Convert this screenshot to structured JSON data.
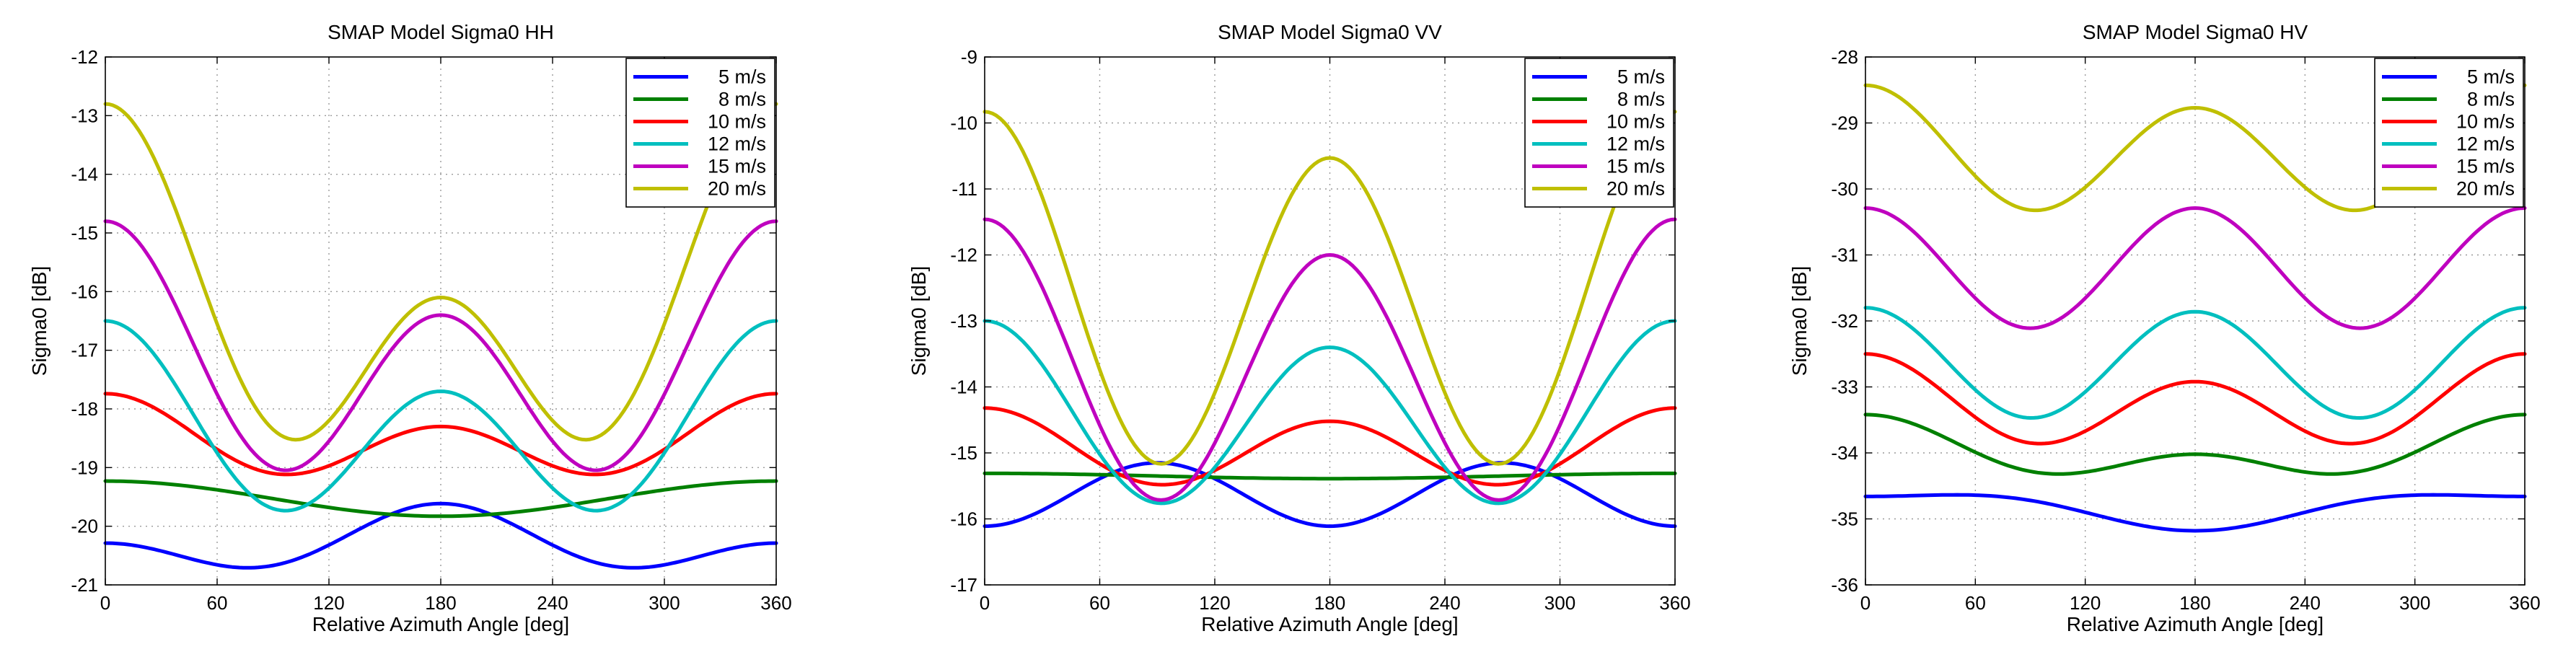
{
  "colors": {
    "5 m/s": "#0000ff",
    "8 m/s": "#008000",
    "10 m/s": "#ff0000",
    "12 m/s": "#00bfbf",
    "15 m/s": "#bf00bf",
    "20 m/s": "#bfbf00"
  },
  "chart_data": [
    {
      "type": "line",
      "title": "SMAP Model Sigma0 HH",
      "xlabel": "Relative Azimuth Angle [deg]",
      "ylabel": "Sigma0 [dB]",
      "xlim": [
        0,
        360
      ],
      "ylim": [
        -21,
        -12
      ],
      "xticks": [
        0,
        60,
        120,
        180,
        240,
        300,
        360
      ],
      "yticks": [
        -21,
        -20,
        -19,
        -18,
        -17,
        -16,
        -15,
        -14,
        -13,
        -12
      ],
      "grid": true,
      "legend_position": "top-right",
      "series": [
        {
          "name": "5 m/s",
          "a0": -20.31,
          "a1": -0.337,
          "a2": 0.359
        },
        {
          "name": "8 m/s",
          "a0": -19.53,
          "a1": 0.3,
          "a2": 0.0
        },
        {
          "name": "10 m/s",
          "a0": -18.56,
          "a1": 0.28,
          "a2": 0.54
        },
        {
          "name": "12 m/s",
          "a0": -18.4,
          "a1": 0.6,
          "a2": 1.3
        },
        {
          "name": "15 m/s",
          "a0": -17.3,
          "a1": 0.8,
          "a2": 1.7
        },
        {
          "name": "20 m/s",
          "a0": -16.4,
          "a1": 1.65,
          "a2": 1.95
        }
      ]
    },
    {
      "type": "line",
      "title": "SMAP Model Sigma0 VV",
      "xlabel": "Relative Azimuth Angle [deg]",
      "ylabel": "Sigma0 [dB]",
      "xlim": [
        0,
        360
      ],
      "ylim": [
        -17,
        -9
      ],
      "xticks": [
        0,
        60,
        120,
        180,
        240,
        300,
        360
      ],
      "yticks": [
        -17,
        -16,
        -15,
        -14,
        -13,
        -12,
        -11,
        -10,
        -9
      ],
      "grid": true,
      "legend_position": "top-right",
      "series": [
        {
          "name": "5 m/s",
          "a0": -15.63,
          "a1": 0.0,
          "a2": -0.48
        },
        {
          "name": "8 m/s",
          "a0": -15.35,
          "a1": 0.04,
          "a2": 0.0
        },
        {
          "name": "10 m/s",
          "a0": -14.95,
          "a1": 0.1,
          "a2": 0.53
        },
        {
          "name": "12 m/s",
          "a0": -14.48,
          "a1": 0.2,
          "a2": 1.28
        },
        {
          "name": "15 m/s",
          "a0": -13.72,
          "a1": 0.27,
          "a2": 1.99
        },
        {
          "name": "20 m/s",
          "a0": -12.67,
          "a1": 0.35,
          "a2": 2.49
        }
      ]
    },
    {
      "type": "line",
      "title": "SMAP Model Sigma0 HV",
      "xlabel": "Relative Azimuth Angle [deg]",
      "ylabel": "Sigma0 [dB]",
      "xlim": [
        0,
        360
      ],
      "ylim": [
        -36,
        -28
      ],
      "xticks": [
        0,
        60,
        120,
        180,
        240,
        300,
        360
      ],
      "yticks": [
        -36,
        -35,
        -34,
        -33,
        -32,
        -31,
        -30,
        -29,
        -28
      ],
      "grid": true,
      "legend_position": "top-right",
      "series": [
        {
          "name": "5 m/s",
          "a0": -34.82,
          "a1": 0.26,
          "a2": -0.1
        },
        {
          "name": "8 m/s",
          "a0": -34.0,
          "a1": 0.3,
          "a2": 0.28
        },
        {
          "name": "10 m/s",
          "a0": -33.28,
          "a1": 0.21,
          "a2": 0.57
        },
        {
          "name": "12 m/s",
          "a0": -32.65,
          "a1": 0.03,
          "a2": 0.82
        },
        {
          "name": "15 m/s",
          "a0": -31.2,
          "a1": 0.0,
          "a2": 0.91
        },
        {
          "name": "20 m/s",
          "a0": -29.46,
          "a1": 0.17,
          "a2": 0.86
        }
      ]
    }
  ]
}
